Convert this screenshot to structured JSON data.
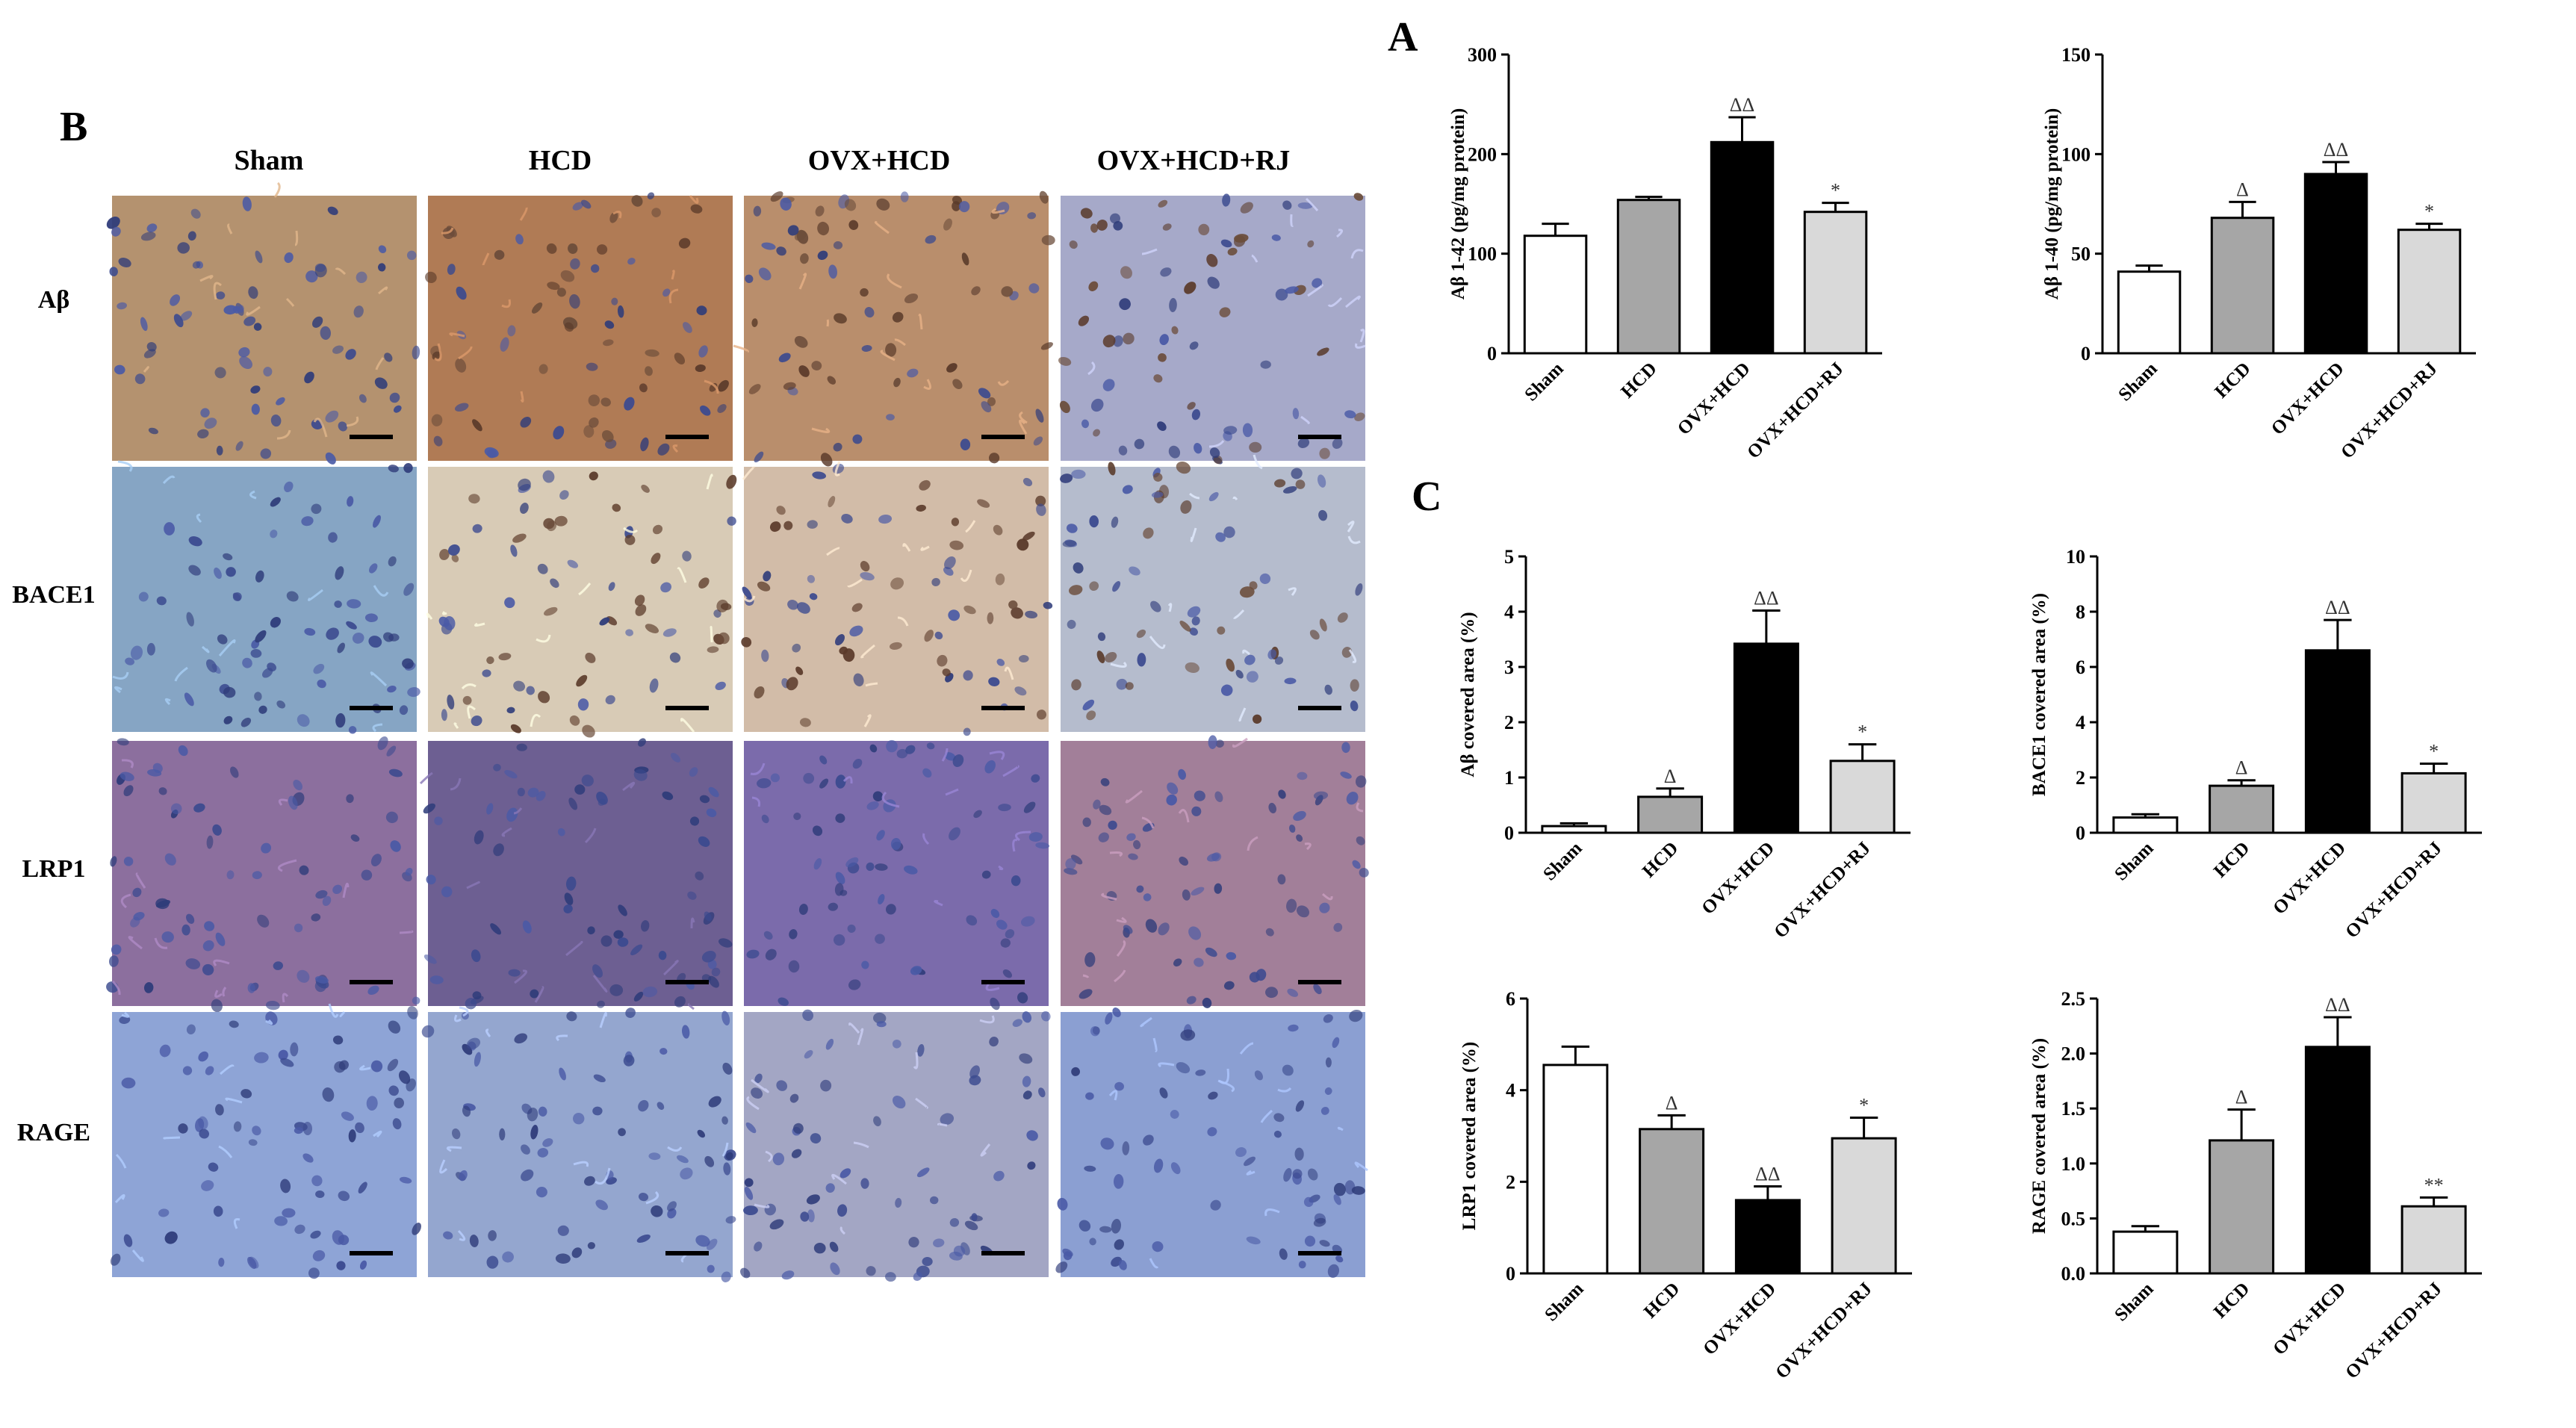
{
  "panels": {
    "a": "A",
    "b": "B",
    "c": "C"
  },
  "micrograph_grid": {
    "columns": [
      "Sham",
      "HCD",
      "OVX+HCD",
      "OVX+HCD+RJ"
    ],
    "rows": [
      "Aβ",
      "BACE1",
      "LRP1",
      "RAGE"
    ],
    "stain_colors": {
      "Aβ": [
        "#b4926f",
        "#b07b55",
        "#b98e6c",
        "#a6a9c9"
      ],
      "BACE1": [
        "#86a5c4",
        "#d8cbb6",
        "#d2bca8",
        "#b5bccd"
      ],
      "LRP1": [
        "#8c6f9e",
        "#6d5f92",
        "#7b6bab",
        "#a27f99"
      ],
      "RAGE": [
        "#8ea4d6",
        "#94a6cf",
        "#a3a6c4",
        "#8b9fd2"
      ]
    }
  },
  "chart_data": [
    {
      "id": "ab142",
      "type": "bar",
      "categories": [
        "Sham",
        "HCD",
        "OVX+HCD",
        "OVX+HCD+RJ"
      ],
      "values": [
        118,
        154,
        212,
        142
      ],
      "errors": [
        12,
        3,
        25,
        9
      ],
      "sig": [
        "",
        "",
        "ΔΔ",
        "*"
      ],
      "ylabel": "Aβ 1-42 (pg/mg protein)",
      "ylim": [
        0,
        300
      ],
      "yticks": [
        "0",
        "100",
        "200",
        "300"
      ],
      "ytick_values": [
        0,
        100,
        200,
        300
      ],
      "colors": [
        "#ffffff",
        "#a6a6a6",
        "#000000",
        "#d9d9d9"
      ]
    },
    {
      "id": "ab140",
      "type": "bar",
      "categories": [
        "Sham",
        "HCD",
        "OVX+HCD",
        "OVX+HCD+RJ"
      ],
      "values": [
        41,
        68,
        90,
        62
      ],
      "errors": [
        3,
        8,
        6,
        3
      ],
      "sig": [
        "",
        "Δ",
        "ΔΔ",
        "*"
      ],
      "ylabel": "Aβ 1-40 (pg/mg protein)",
      "ylim": [
        0,
        150
      ],
      "yticks": [
        "0",
        "50",
        "100",
        "150"
      ],
      "ytick_values": [
        0,
        50,
        100,
        150
      ],
      "colors": [
        "#ffffff",
        "#a6a6a6",
        "#000000",
        "#d9d9d9"
      ]
    },
    {
      "id": "abarea",
      "type": "bar",
      "categories": [
        "Sham",
        "HCD",
        "OVX+HCD",
        "OVX+HCD+RJ"
      ],
      "values": [
        0.12,
        0.65,
        3.42,
        1.3
      ],
      "errors": [
        0.05,
        0.15,
        0.6,
        0.3
      ],
      "sig": [
        "",
        "Δ",
        "ΔΔ",
        "*"
      ],
      "ylabel": "Aβ covered area (%)",
      "ylim": [
        0,
        5
      ],
      "yticks": [
        "0",
        "1",
        "2",
        "3",
        "4",
        "5"
      ],
      "ytick_values": [
        0,
        1,
        2,
        3,
        4,
        5
      ],
      "colors": [
        "#ffffff",
        "#a6a6a6",
        "#000000",
        "#d9d9d9"
      ]
    },
    {
      "id": "bace1area",
      "type": "bar",
      "categories": [
        "Sham",
        "HCD",
        "OVX+HCD",
        "OVX+HCD+RJ"
      ],
      "values": [
        0.55,
        1.7,
        6.6,
        2.15
      ],
      "errors": [
        0.12,
        0.2,
        1.1,
        0.35
      ],
      "sig": [
        "",
        "Δ",
        "ΔΔ",
        "*"
      ],
      "ylabel": "BACE1 covered area (%)",
      "ylim": [
        0,
        10
      ],
      "yticks": [
        "0",
        "2",
        "4",
        "6",
        "8",
        "10"
      ],
      "ytick_values": [
        0,
        2,
        4,
        6,
        8,
        10
      ],
      "colors": [
        "#ffffff",
        "#a6a6a6",
        "#000000",
        "#d9d9d9"
      ]
    },
    {
      "id": "lrp1area",
      "type": "bar",
      "categories": [
        "Sham",
        "HCD",
        "OVX+HCD",
        "OVX+HCD+RJ"
      ],
      "values": [
        4.55,
        3.15,
        1.6,
        2.95
      ],
      "errors": [
        0.4,
        0.3,
        0.3,
        0.45
      ],
      "sig": [
        "",
        "Δ",
        "ΔΔ",
        "*"
      ],
      "ylabel": "LRP1 covered area (%)",
      "ylim": [
        0,
        6
      ],
      "yticks": [
        "0",
        "2",
        "4",
        "6"
      ],
      "ytick_values": [
        0,
        2,
        4,
        6
      ],
      "colors": [
        "#ffffff",
        "#a6a6a6",
        "#000000",
        "#d9d9d9"
      ]
    },
    {
      "id": "rageara",
      "type": "bar",
      "categories": [
        "Sham",
        "HCD",
        "OVX+HCD",
        "OVX+HCD+RJ"
      ],
      "values": [
        0.38,
        1.21,
        2.06,
        0.61
      ],
      "errors": [
        0.05,
        0.28,
        0.27,
        0.08
      ],
      "sig": [
        "",
        "Δ",
        "ΔΔ",
        "**"
      ],
      "ylabel": "RAGE covered area (%)",
      "ylim": [
        0,
        2.5
      ],
      "yticks": [
        "0.0",
        "0.5",
        "1.0",
        "1.5",
        "2.0",
        "2.5"
      ],
      "ytick_values": [
        0,
        0.5,
        1,
        1.5,
        2,
        2.5
      ],
      "colors": [
        "#ffffff",
        "#a6a6a6",
        "#000000",
        "#d9d9d9"
      ]
    }
  ]
}
